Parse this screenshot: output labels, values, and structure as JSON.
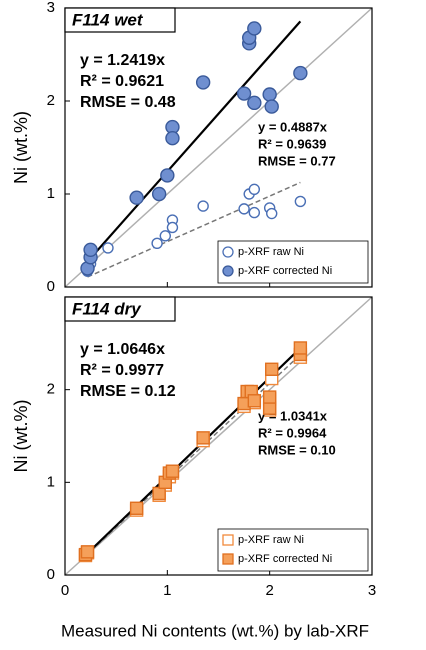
{
  "x_axis_title": "Measured Ni contents (wt.%) by lab-XRF",
  "chart_data": [
    {
      "type": "scatter",
      "panel_label": "F114 wet",
      "ylabel": "Ni (wt.%)",
      "xlim": [
        0,
        3
      ],
      "ylim": [
        0,
        3
      ],
      "xticks": [
        0,
        1,
        2,
        3
      ],
      "yticks": [
        0,
        1,
        2,
        3
      ],
      "identity_line": true,
      "legend": "bottom-right",
      "series": [
        {
          "name": "p-XRF raw Ni",
          "marker": "circle",
          "filled": false,
          "color": "#4a6fb5",
          "x": [
            0.22,
            0.25,
            0.42,
            0.9,
            0.98,
            1.05,
            1.05,
            1.35,
            1.75,
            1.8,
            1.85,
            1.85,
            2.0,
            2.02,
            2.3
          ],
          "values": [
            0.17,
            0.25,
            0.42,
            0.47,
            0.55,
            0.72,
            0.64,
            0.87,
            0.84,
            1.0,
            1.05,
            0.8,
            0.85,
            0.79,
            0.92
          ],
          "fit": {
            "slope": 0.4887,
            "equation": "y = 0.4887x",
            "r2": "R² = 0.9639",
            "rmse": "RMSE = 0.77",
            "dashed": true
          }
        },
        {
          "name": "p-XRF corrected Ni",
          "marker": "circle",
          "filled": true,
          "color": "#6f8fd0",
          "x": [
            0.22,
            0.25,
            0.25,
            0.7,
            0.92,
            1.0,
            1.05,
            1.05,
            1.35,
            1.75,
            1.8,
            1.8,
            1.85,
            1.85,
            2.0,
            2.02,
            2.3
          ],
          "values": [
            0.2,
            0.32,
            0.4,
            0.96,
            1.0,
            1.2,
            1.72,
            1.6,
            2.2,
            2.08,
            2.62,
            2.68,
            2.78,
            1.98,
            2.07,
            1.94,
            2.3
          ],
          "fit": {
            "slope": 1.2419,
            "equation": "y = 1.2419x",
            "r2": "R² = 0.9621",
            "rmse": "RMSE = 0.48",
            "dashed": false
          }
        }
      ]
    },
    {
      "type": "scatter",
      "panel_label": "F114 dry",
      "ylabel": "Ni (wt.%)",
      "xlim": [
        0,
        3
      ],
      "ylim": [
        0,
        3
      ],
      "xticks": [
        0,
        1,
        2,
        3
      ],
      "yticks": [
        0,
        1,
        2
      ],
      "identity_line": true,
      "legend": "bottom-right",
      "series": [
        {
          "name": "p-XRF raw Ni",
          "marker": "square",
          "filled": false,
          "color": "#f08a3c",
          "x": [
            0.2,
            0.22,
            0.7,
            0.92,
            0.98,
            1.02,
            1.05,
            1.35,
            1.75,
            1.78,
            1.82,
            1.85,
            2.0,
            2.0,
            2.02,
            2.3
          ],
          "values": [
            0.21,
            0.24,
            0.7,
            0.86,
            0.97,
            1.06,
            1.1,
            1.45,
            1.82,
            1.95,
            1.95,
            1.86,
            1.78,
            1.9,
            2.12,
            2.35
          ],
          "fit": {
            "slope": 1.0341,
            "equation": "y = 1.0341x",
            "r2": "R² = 0.9964",
            "rmse": "RMSE = 0.10",
            "dashed": true
          }
        },
        {
          "name": "p-XRF corrected Ni",
          "marker": "square",
          "filled": true,
          "color": "#f5a05a",
          "x": [
            0.2,
            0.22,
            0.7,
            0.92,
            0.98,
            1.02,
            1.05,
            1.35,
            1.75,
            1.78,
            1.82,
            1.85,
            2.0,
            2.0,
            2.02,
            2.3,
            2.3
          ],
          "values": [
            0.22,
            0.25,
            0.72,
            0.88,
            1.0,
            1.1,
            1.12,
            1.48,
            1.85,
            1.98,
            1.98,
            1.88,
            1.8,
            1.92,
            2.22,
            2.38,
            2.45
          ],
          "fit": {
            "slope": 1.0646,
            "equation": "y = 1.0646x",
            "r2": "R² = 0.9977",
            "rmse": "RMSE = 0.12",
            "dashed": false
          }
        }
      ]
    }
  ]
}
